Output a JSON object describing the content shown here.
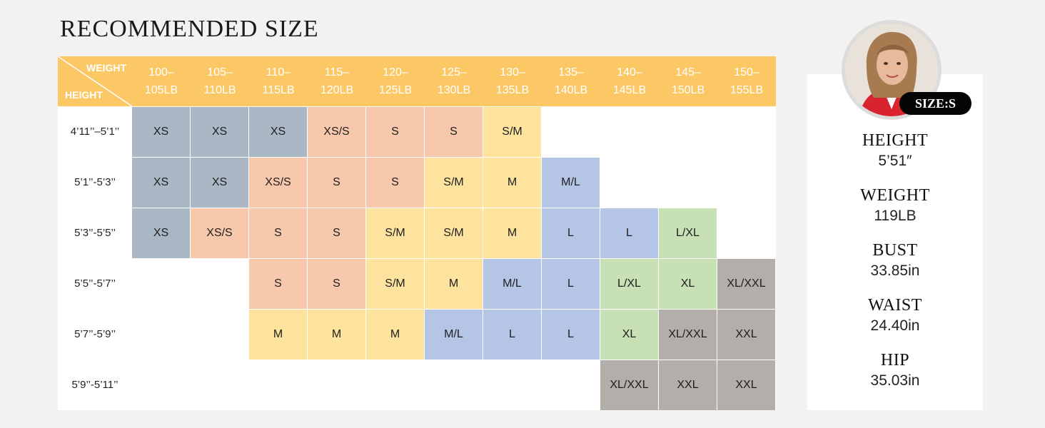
{
  "title": "RECOMMENDED SIZE",
  "colors": {
    "header": "#fcc865",
    "XS": "#aab7c4",
    "S": "#f7c8ac",
    "M": "#fde39d",
    "L": "#b4c5e5",
    "XL": "#c7e0b4",
    "XXL": "#b4aeab"
  },
  "chart_data": {
    "type": "table",
    "corner": {
      "top_right": "WEIGHT",
      "bottom_left": "HEIGHT"
    },
    "columns": [
      [
        "100–",
        "105LB"
      ],
      [
        "105–",
        "110LB"
      ],
      [
        "110–",
        "115LB"
      ],
      [
        "115–",
        "120LB"
      ],
      [
        "120–",
        "125LB"
      ],
      [
        "125–",
        "130LB"
      ],
      [
        "130–",
        "135LB"
      ],
      [
        "135–",
        "140LB"
      ],
      [
        "140–",
        "145LB"
      ],
      [
        "145–",
        "150LB"
      ],
      [
        "150–",
        "155LB"
      ]
    ],
    "rows": [
      {
        "height": "4’11’’–5’1’’",
        "cells": [
          {
            "v": "XS",
            "c": "XS"
          },
          {
            "v": "XS",
            "c": "XS"
          },
          {
            "v": "XS",
            "c": "XS"
          },
          {
            "v": "XS/S",
            "c": "S"
          },
          {
            "v": "S",
            "c": "S"
          },
          {
            "v": "S",
            "c": "S"
          },
          {
            "v": "S/M",
            "c": "M"
          },
          null,
          null,
          null,
          null
        ]
      },
      {
        "height": "5’1’’-5’3’’",
        "cells": [
          {
            "v": "XS",
            "c": "XS"
          },
          {
            "v": "XS",
            "c": "XS"
          },
          {
            "v": "XS/S",
            "c": "S"
          },
          {
            "v": "S",
            "c": "S"
          },
          {
            "v": "S",
            "c": "S"
          },
          {
            "v": "S/M",
            "c": "M"
          },
          {
            "v": "M",
            "c": "M"
          },
          {
            "v": "M/L",
            "c": "L"
          },
          null,
          null,
          null
        ]
      },
      {
        "height": "5’3’’-5’5’’",
        "cells": [
          {
            "v": "XS",
            "c": "XS"
          },
          {
            "v": "XS/S",
            "c": "S"
          },
          {
            "v": "S",
            "c": "S"
          },
          {
            "v": "S",
            "c": "S"
          },
          {
            "v": "S/M",
            "c": "M"
          },
          {
            "v": "S/M",
            "c": "M"
          },
          {
            "v": "M",
            "c": "M"
          },
          {
            "v": "L",
            "c": "L"
          },
          {
            "v": "L",
            "c": "L"
          },
          {
            "v": "L/XL",
            "c": "XL"
          },
          null
        ]
      },
      {
        "height": "5’5’’-5’7’’",
        "cells": [
          null,
          null,
          {
            "v": "S",
            "c": "S"
          },
          {
            "v": "S",
            "c": "S"
          },
          {
            "v": "S/M",
            "c": "M"
          },
          {
            "v": "M",
            "c": "M"
          },
          {
            "v": "M/L",
            "c": "L"
          },
          {
            "v": "L",
            "c": "L"
          },
          {
            "v": "L/XL",
            "c": "XL"
          },
          {
            "v": "XL",
            "c": "XL"
          },
          {
            "v": "XL/XXL",
            "c": "XXL"
          }
        ]
      },
      {
        "height": "5’7’’-5’9’’",
        "cells": [
          null,
          null,
          {
            "v": "M",
            "c": "M"
          },
          {
            "v": "M",
            "c": "M"
          },
          {
            "v": "M",
            "c": "M"
          },
          {
            "v": "M/L",
            "c": "L"
          },
          {
            "v": "L",
            "c": "L"
          },
          {
            "v": "L",
            "c": "L"
          },
          {
            "v": "XL",
            "c": "XL"
          },
          {
            "v": "XL/XXL",
            "c": "XXL"
          },
          {
            "v": "XXL",
            "c": "XXL"
          }
        ]
      },
      {
        "height": "5’9’’-5’11’’",
        "cells": [
          null,
          null,
          null,
          null,
          null,
          null,
          null,
          null,
          {
            "v": "XL/XXL",
            "c": "XXL"
          },
          {
            "v": "XXL",
            "c": "XXL"
          },
          {
            "v": "XXL",
            "c": "XXL"
          }
        ]
      }
    ]
  },
  "model": {
    "badge": "SIZE:S",
    "stats": [
      {
        "label": "HEIGHT",
        "value": "5’51″"
      },
      {
        "label": "WEIGHT",
        "value": "119LB"
      },
      {
        "label": "BUST",
        "value": "33.85in"
      },
      {
        "label": "WAIST",
        "value": "24.40in"
      },
      {
        "label": "HIP",
        "value": "35.03in"
      }
    ]
  }
}
